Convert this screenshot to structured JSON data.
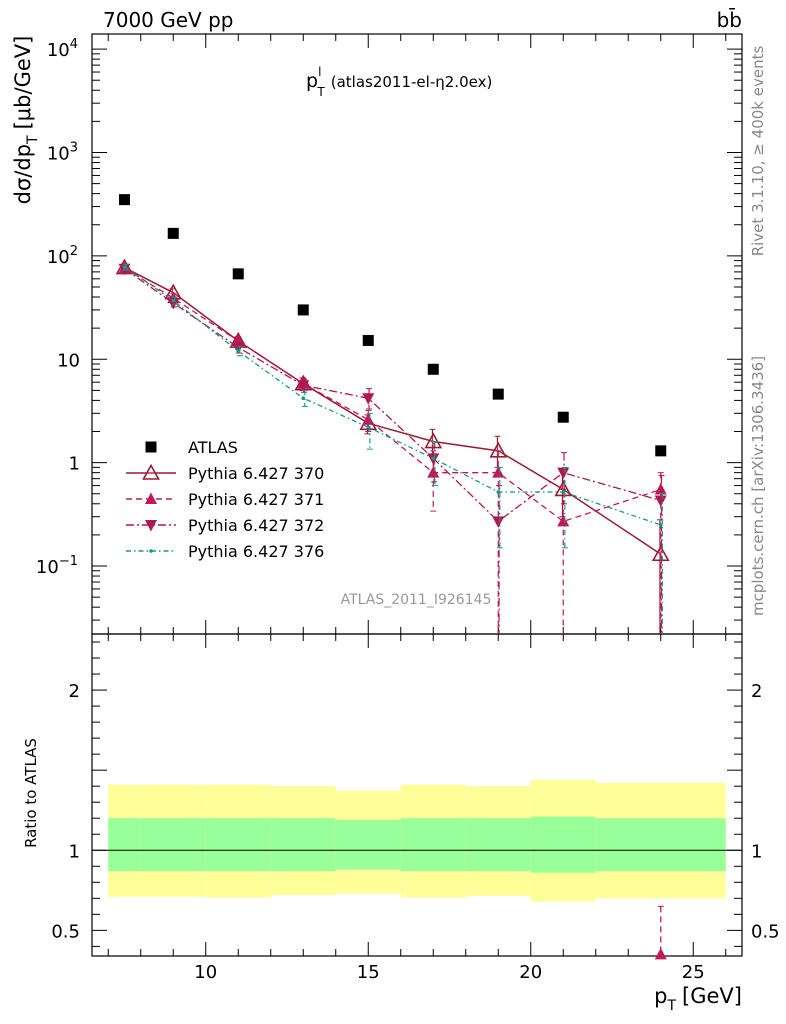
{
  "header": {
    "energy_label": "7000 GeV pp",
    "process_label": "bb̄",
    "plot_title_main": "p",
    "plot_title_sup": "l",
    "plot_title_sub": "T",
    "plot_title_rest": "(atlas2011-el-η2.0ex)",
    "watermark": "ATLAS_2011_I926145",
    "side_label_top": "Rivet 3.1.10, ≥ 400k events",
    "side_label_bottom": "mcplots.cern.ch [arXiv:1306.3436]"
  },
  "colors": {
    "atlas": "#000000",
    "p370": "#9b1c31",
    "p371": "#c0185a",
    "p372": "#b0184f",
    "p376": "#129a8a",
    "band_inner": "#99ff99",
    "band_outer": "#ffff99"
  },
  "chart_data": [
    {
      "type": "scatter",
      "panel": "main",
      "ylabel": "dσ/dp_T [μb/GeV]",
      "yscale": "log",
      "xlim": [
        6.5,
        26.5
      ],
      "ylim": [
        0.022,
        14000
      ],
      "y_tick_labels": [
        "10^-1",
        "1",
        "10",
        "10^2",
        "10^3",
        "10^4"
      ],
      "legend_position": "lower-left",
      "series": [
        {
          "name": "ATLAS",
          "color": "#000000",
          "marker": "square",
          "points": [
            {
              "x": 7.5,
              "y": 350
            },
            {
              "x": 9,
              "y": 165
            },
            {
              "x": 11,
              "y": 67
            },
            {
              "x": 13,
              "y": 30
            },
            {
              "x": 15,
              "y": 15.2
            },
            {
              "x": 17,
              "y": 8.0
            },
            {
              "x": 19,
              "y": 4.6
            },
            {
              "x": 21,
              "y": 2.75
            },
            {
              "x": 24,
              "y": 1.3
            }
          ]
        },
        {
          "name": "Pythia 6.427 370",
          "color": "#9b1c31",
          "marker": "open-triangle-up",
          "line": "solid",
          "points": [
            {
              "x": 7.5,
              "y": 77,
              "lo": 72,
              "hi": 82
            },
            {
              "x": 9,
              "y": 44,
              "lo": 40,
              "hi": 48
            },
            {
              "x": 11,
              "y": 15,
              "lo": 13.5,
              "hi": 16.5
            },
            {
              "x": 13,
              "y": 5.8,
              "lo": 5.0,
              "hi": 6.6
            },
            {
              "x": 15,
              "y": 2.4,
              "lo": 1.9,
              "hi": 2.9
            },
            {
              "x": 17,
              "y": 1.6,
              "lo": 1.2,
              "hi": 2.1
            },
            {
              "x": 19,
              "y": 1.3,
              "lo": 0.9,
              "hi": 1.8
            },
            {
              "x": 21,
              "y": 0.55,
              "lo": 0.3,
              "hi": 0.85
            },
            {
              "x": 24,
              "y": 0.13,
              "lo": 0.02,
              "hi": 0.28
            }
          ]
        },
        {
          "name": "Pythia 6.427 371",
          "color": "#c0185a",
          "marker": "filled-triangle-up",
          "line": "dashed",
          "points": [
            {
              "x": 7.5,
              "y": 76,
              "lo": 71,
              "hi": 81
            },
            {
              "x": 9,
              "y": 39,
              "lo": 35,
              "hi": 43
            },
            {
              "x": 11,
              "y": 15,
              "lo": 13.5,
              "hi": 16.5
            },
            {
              "x": 13,
              "y": 5.8,
              "lo": 5.0,
              "hi": 6.6
            },
            {
              "x": 15,
              "y": 2.6,
              "lo": 2.0,
              "hi": 3.2
            },
            {
              "x": 17,
              "y": 0.8,
              "lo": 0.34,
              "hi": 1.3
            },
            {
              "x": 19,
              "y": 0.8,
              "lo": 0.02,
              "hi": 1.3
            },
            {
              "x": 21,
              "y": 0.27,
              "lo": 0.02,
              "hi": 0.55
            },
            {
              "x": 24,
              "y": 0.55,
              "lo": 0.02,
              "hi": 0.8
            }
          ]
        },
        {
          "name": "Pythia 6.427 372",
          "color": "#b0184f",
          "marker": "filled-triangle-down",
          "line": "dashdot",
          "points": [
            {
              "x": 7.5,
              "y": 75,
              "lo": 70,
              "hi": 80
            },
            {
              "x": 9,
              "y": 35,
              "lo": 32,
              "hi": 38
            },
            {
              "x": 11,
              "y": 13,
              "lo": 11.5,
              "hi": 14.5
            },
            {
              "x": 13,
              "y": 5.6,
              "lo": 4.8,
              "hi": 6.4
            },
            {
              "x": 15,
              "y": 4.2,
              "lo": 3.3,
              "hi": 5.2
            },
            {
              "x": 17,
              "y": 1.1,
              "lo": 0.65,
              "hi": 1.6
            },
            {
              "x": 19,
              "y": 0.27,
              "lo": 0.02,
              "hi": 0.6
            },
            {
              "x": 21,
              "y": 0.8,
              "lo": 0.4,
              "hi": 1.25
            },
            {
              "x": 24,
              "y": 0.43,
              "lo": 0.02,
              "hi": 0.75
            }
          ]
        },
        {
          "name": "Pythia 6.427 376",
          "color": "#129a8a",
          "marker": "small-dot",
          "line": "dashdot-fine",
          "points": [
            {
              "x": 7.5,
              "y": 78,
              "lo": 73,
              "hi": 83
            },
            {
              "x": 9,
              "y": 37,
              "lo": 34,
              "hi": 40
            },
            {
              "x": 11,
              "y": 12,
              "lo": 10.8,
              "hi": 13.2
            },
            {
              "x": 13,
              "y": 4.2,
              "lo": 3.5,
              "hi": 5.0
            },
            {
              "x": 15,
              "y": 2.2,
              "lo": 1.35,
              "hi": 3.0
            },
            {
              "x": 17,
              "y": 1.1,
              "lo": 0.6,
              "hi": 1.6
            },
            {
              "x": 19,
              "y": 0.52,
              "lo": 0.15,
              "hi": 0.9
            },
            {
              "x": 21,
              "y": 0.52,
              "lo": 0.15,
              "hi": 0.9
            },
            {
              "x": 24,
              "y": 0.25,
              "lo": 0.02,
              "hi": 0.5
            }
          ]
        }
      ]
    },
    {
      "type": "area",
      "panel": "ratio",
      "ylabel": "Ratio to ATLAS",
      "xlabel_main": "p",
      "xlabel_sub": "T",
      "xlabel_unit": "[GeV]",
      "xlim": [
        6.5,
        26.5
      ],
      "ylim": [
        0.34,
        2.35
      ],
      "x_ticks": [
        10,
        15,
        20,
        25
      ],
      "y_ticks": [
        0.5,
        1,
        2
      ],
      "reference_line": 1,
      "bands": [
        {
          "xlo": 7,
          "xhi": 8,
          "inner_lo": 0.87,
          "inner_hi": 1.2,
          "outer_lo": 0.71,
          "outer_hi": 1.41
        },
        {
          "xlo": 8,
          "xhi": 10,
          "inner_lo": 0.87,
          "inner_hi": 1.2,
          "outer_lo": 0.71,
          "outer_hi": 1.41
        },
        {
          "xlo": 10,
          "xhi": 12,
          "inner_lo": 0.87,
          "inner_hi": 1.2,
          "outer_lo": 0.705,
          "outer_hi": 1.41
        },
        {
          "xlo": 12,
          "xhi": 14,
          "inner_lo": 0.87,
          "inner_hi": 1.2,
          "outer_lo": 0.72,
          "outer_hi": 1.4
        },
        {
          "xlo": 14,
          "xhi": 16,
          "inner_lo": 0.88,
          "inner_hi": 1.19,
          "outer_lo": 0.73,
          "outer_hi": 1.37
        },
        {
          "xlo": 16,
          "xhi": 18,
          "inner_lo": 0.87,
          "inner_hi": 1.2,
          "outer_lo": 0.705,
          "outer_hi": 1.41
        },
        {
          "xlo": 18,
          "xhi": 20,
          "inner_lo": 0.87,
          "inner_hi": 1.2,
          "outer_lo": 0.715,
          "outer_hi": 1.4
        },
        {
          "xlo": 20,
          "xhi": 22,
          "inner_lo": 0.86,
          "inner_hi": 1.21,
          "outer_lo": 0.68,
          "outer_hi": 1.44
        },
        {
          "xlo": 22,
          "xhi": 26,
          "inner_lo": 0.87,
          "inner_hi": 1.2,
          "outer_lo": 0.7,
          "outer_hi": 1.42
        }
      ],
      "points": [
        {
          "series": "Pythia 6.427 371",
          "x": 24,
          "y": 0.35,
          "hi": 0.65
        }
      ]
    }
  ]
}
